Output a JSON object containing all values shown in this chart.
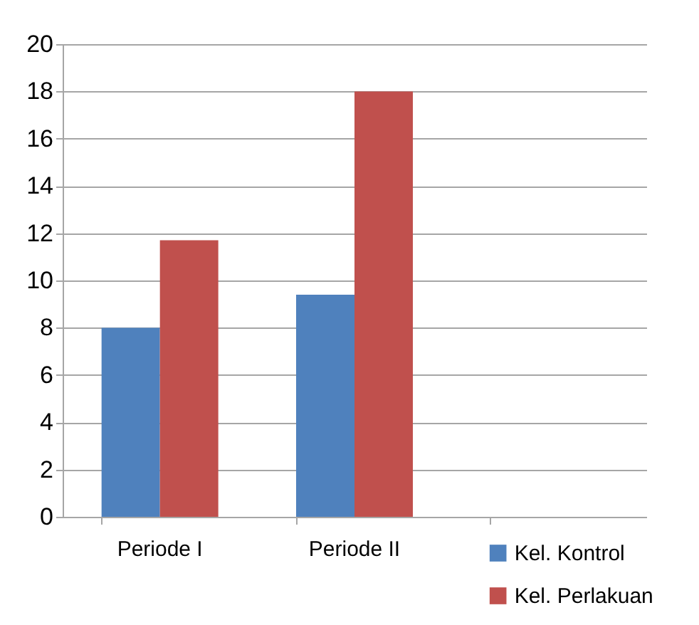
{
  "chart_data": {
    "type": "bar",
    "categories": [
      "Periode I",
      "Periode II",
      null
    ],
    "series": [
      {
        "name": "Kel. Kontrol",
        "color": "#4f81bd",
        "values": [
          8,
          9.4,
          null
        ]
      },
      {
        "name": "Kel. Perlakuan",
        "color": "#c0504d",
        "values": [
          11.7,
          18,
          null
        ]
      }
    ],
    "ylim": [
      0,
      20
    ],
    "yticks": [
      0,
      2,
      4,
      6,
      8,
      10,
      12,
      14,
      16,
      18,
      20
    ],
    "grid": "y",
    "legend": "bottom right"
  }
}
